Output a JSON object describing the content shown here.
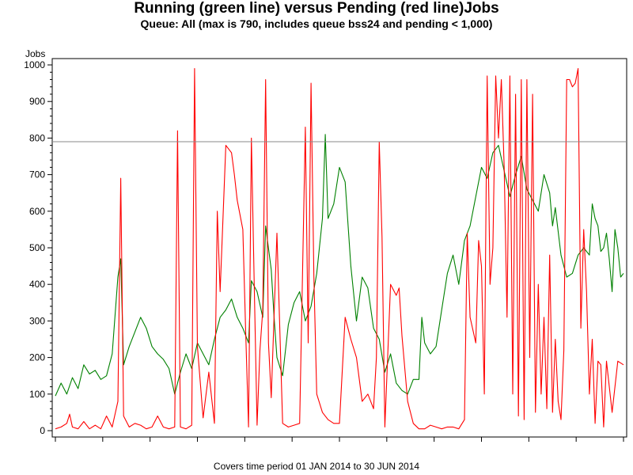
{
  "chart_data": {
    "type": "line",
    "title": "Running (green line) versus Pending (red line)Jobs",
    "subtitle": "Queue: All (max is 790, includes queue bss24 and pending < 1,000)",
    "ylabel": "Jobs",
    "xlabel": "",
    "ylim": [
      0,
      1000
    ],
    "yticks": [
      "0",
      "100",
      "200",
      "300",
      "400",
      "500",
      "600",
      "700",
      "800",
      "900",
      "1000"
    ],
    "x_period": [
      "2014-01-01",
      "2014-06-30"
    ],
    "x_tick_count": 13,
    "reference_line": {
      "y": 790,
      "color": "#888888"
    },
    "grid": false,
    "footnote": "Covers time period 01 JAN 2014 to 30 JUN 2014",
    "series": [
      {
        "name": "Running",
        "color": "#008000",
        "points": [
          [
            0.0,
            95
          ],
          [
            0.01,
            130
          ],
          [
            0.02,
            100
          ],
          [
            0.03,
            145
          ],
          [
            0.04,
            115
          ],
          [
            0.05,
            180
          ],
          [
            0.06,
            155
          ],
          [
            0.07,
            165
          ],
          [
            0.08,
            140
          ],
          [
            0.09,
            150
          ],
          [
            0.1,
            210
          ],
          [
            0.11,
            420
          ],
          [
            0.115,
            470
          ],
          [
            0.12,
            180
          ],
          [
            0.13,
            230
          ],
          [
            0.14,
            270
          ],
          [
            0.15,
            310
          ],
          [
            0.16,
            280
          ],
          [
            0.17,
            230
          ],
          [
            0.18,
            210
          ],
          [
            0.19,
            195
          ],
          [
            0.2,
            170
          ],
          [
            0.21,
            100
          ],
          [
            0.22,
            160
          ],
          [
            0.23,
            210
          ],
          [
            0.24,
            170
          ],
          [
            0.25,
            240
          ],
          [
            0.26,
            210
          ],
          [
            0.27,
            180
          ],
          [
            0.28,
            250
          ],
          [
            0.29,
            310
          ],
          [
            0.3,
            330
          ],
          [
            0.31,
            360
          ],
          [
            0.32,
            310
          ],
          [
            0.33,
            280
          ],
          [
            0.34,
            240
          ],
          [
            0.345,
            410
          ],
          [
            0.355,
            380
          ],
          [
            0.365,
            310
          ],
          [
            0.37,
            560
          ],
          [
            0.38,
            440
          ],
          [
            0.385,
            310
          ],
          [
            0.39,
            200
          ],
          [
            0.4,
            150
          ],
          [
            0.41,
            290
          ],
          [
            0.42,
            350
          ],
          [
            0.43,
            380
          ],
          [
            0.44,
            300
          ],
          [
            0.45,
            340
          ],
          [
            0.46,
            430
          ],
          [
            0.47,
            580
          ],
          [
            0.475,
            810
          ],
          [
            0.48,
            580
          ],
          [
            0.49,
            620
          ],
          [
            0.5,
            720
          ],
          [
            0.51,
            680
          ],
          [
            0.52,
            450
          ],
          [
            0.53,
            300
          ],
          [
            0.54,
            420
          ],
          [
            0.55,
            390
          ],
          [
            0.56,
            280
          ],
          [
            0.57,
            250
          ],
          [
            0.58,
            160
          ],
          [
            0.59,
            210
          ],
          [
            0.6,
            130
          ],
          [
            0.61,
            110
          ],
          [
            0.62,
            100
          ],
          [
            0.63,
            140
          ],
          [
            0.64,
            140
          ],
          [
            0.645,
            310
          ],
          [
            0.65,
            240
          ],
          [
            0.66,
            210
          ],
          [
            0.67,
            230
          ],
          [
            0.68,
            330
          ],
          [
            0.69,
            430
          ],
          [
            0.7,
            480
          ],
          [
            0.71,
            400
          ],
          [
            0.72,
            520
          ],
          [
            0.73,
            560
          ],
          [
            0.74,
            640
          ],
          [
            0.75,
            720
          ],
          [
            0.76,
            690
          ],
          [
            0.77,
            760
          ],
          [
            0.78,
            780
          ],
          [
            0.79,
            710
          ],
          [
            0.8,
            640
          ],
          [
            0.81,
            700
          ],
          [
            0.82,
            750
          ],
          [
            0.83,
            660
          ],
          [
            0.84,
            630
          ],
          [
            0.85,
            600
          ],
          [
            0.86,
            700
          ],
          [
            0.87,
            650
          ],
          [
            0.875,
            560
          ],
          [
            0.88,
            610
          ],
          [
            0.89,
            480
          ],
          [
            0.9,
            420
          ],
          [
            0.91,
            430
          ],
          [
            0.92,
            480
          ],
          [
            0.93,
            500
          ],
          [
            0.94,
            480
          ],
          [
            0.945,
            620
          ],
          [
            0.95,
            580
          ],
          [
            0.955,
            560
          ],
          [
            0.96,
            490
          ],
          [
            0.965,
            500
          ],
          [
            0.97,
            540
          ],
          [
            0.975,
            470
          ],
          [
            0.98,
            380
          ],
          [
            0.985,
            550
          ],
          [
            0.99,
            500
          ],
          [
            0.995,
            420
          ],
          [
            1.0,
            430
          ]
        ]
      },
      {
        "name": "Pending",
        "color": "#ff0000",
        "points": [
          [
            0.0,
            5
          ],
          [
            0.01,
            10
          ],
          [
            0.02,
            20
          ],
          [
            0.025,
            45
          ],
          [
            0.03,
            10
          ],
          [
            0.04,
            5
          ],
          [
            0.05,
            25
          ],
          [
            0.06,
            5
          ],
          [
            0.07,
            15
          ],
          [
            0.08,
            5
          ],
          [
            0.09,
            40
          ],
          [
            0.1,
            10
          ],
          [
            0.11,
            80
          ],
          [
            0.115,
            690
          ],
          [
            0.12,
            40
          ],
          [
            0.13,
            10
          ],
          [
            0.14,
            20
          ],
          [
            0.15,
            15
          ],
          [
            0.16,
            5
          ],
          [
            0.17,
            10
          ],
          [
            0.18,
            40
          ],
          [
            0.19,
            10
          ],
          [
            0.2,
            5
          ],
          [
            0.21,
            10
          ],
          [
            0.215,
            820
          ],
          [
            0.22,
            10
          ],
          [
            0.23,
            5
          ],
          [
            0.24,
            15
          ],
          [
            0.245,
            990
          ],
          [
            0.25,
            230
          ],
          [
            0.26,
            35
          ],
          [
            0.27,
            160
          ],
          [
            0.28,
            20
          ],
          [
            0.285,
            600
          ],
          [
            0.29,
            380
          ],
          [
            0.3,
            780
          ],
          [
            0.31,
            760
          ],
          [
            0.315,
            700
          ],
          [
            0.32,
            630
          ],
          [
            0.33,
            550
          ],
          [
            0.335,
            270
          ],
          [
            0.34,
            10
          ],
          [
            0.345,
            800
          ],
          [
            0.35,
            400
          ],
          [
            0.355,
            15
          ],
          [
            0.36,
            220
          ],
          [
            0.365,
            330
          ],
          [
            0.37,
            960
          ],
          [
            0.375,
            240
          ],
          [
            0.38,
            90
          ],
          [
            0.39,
            540
          ],
          [
            0.4,
            20
          ],
          [
            0.41,
            10
          ],
          [
            0.42,
            15
          ],
          [
            0.43,
            20
          ],
          [
            0.44,
            830
          ],
          [
            0.445,
            240
          ],
          [
            0.45,
            950
          ],
          [
            0.455,
            420
          ],
          [
            0.46,
            100
          ],
          [
            0.47,
            50
          ],
          [
            0.48,
            30
          ],
          [
            0.49,
            20
          ],
          [
            0.5,
            20
          ],
          [
            0.51,
            310
          ],
          [
            0.52,
            250
          ],
          [
            0.53,
            200
          ],
          [
            0.54,
            80
          ],
          [
            0.55,
            100
          ],
          [
            0.56,
            60
          ],
          [
            0.565,
            200
          ],
          [
            0.57,
            790
          ],
          [
            0.575,
            530
          ],
          [
            0.58,
            10
          ],
          [
            0.59,
            400
          ],
          [
            0.6,
            370
          ],
          [
            0.605,
            390
          ],
          [
            0.61,
            260
          ],
          [
            0.62,
            80
          ],
          [
            0.63,
            20
          ],
          [
            0.64,
            5
          ],
          [
            0.65,
            5
          ],
          [
            0.66,
            15
          ],
          [
            0.67,
            10
          ],
          [
            0.68,
            5
          ],
          [
            0.69,
            10
          ],
          [
            0.7,
            10
          ],
          [
            0.71,
            5
          ],
          [
            0.72,
            30
          ],
          [
            0.725,
            540
          ],
          [
            0.73,
            310
          ],
          [
            0.74,
            240
          ],
          [
            0.745,
            520
          ],
          [
            0.75,
            450
          ],
          [
            0.755,
            100
          ],
          [
            0.76,
            970
          ],
          [
            0.765,
            400
          ],
          [
            0.77,
            500
          ],
          [
            0.775,
            970
          ],
          [
            0.78,
            800
          ],
          [
            0.785,
            960
          ],
          [
            0.79,
            720
          ],
          [
            0.795,
            310
          ],
          [
            0.8,
            970
          ],
          [
            0.805,
            100
          ],
          [
            0.81,
            920
          ],
          [
            0.815,
            40
          ],
          [
            0.82,
            960
          ],
          [
            0.825,
            30
          ],
          [
            0.83,
            960
          ],
          [
            0.835,
            200
          ],
          [
            0.84,
            920
          ],
          [
            0.845,
            50
          ],
          [
            0.85,
            400
          ],
          [
            0.855,
            100
          ],
          [
            0.86,
            310
          ],
          [
            0.865,
            60
          ],
          [
            0.87,
            480
          ],
          [
            0.875,
            50
          ],
          [
            0.88,
            250
          ],
          [
            0.885,
            80
          ],
          [
            0.89,
            30
          ],
          [
            0.895,
            220
          ],
          [
            0.9,
            960
          ],
          [
            0.905,
            960
          ],
          [
            0.91,
            940
          ],
          [
            0.915,
            950
          ],
          [
            0.92,
            990
          ],
          [
            0.925,
            280
          ],
          [
            0.93,
            550
          ],
          [
            0.935,
            380
          ],
          [
            0.94,
            100
          ],
          [
            0.945,
            250
          ],
          [
            0.95,
            20
          ],
          [
            0.955,
            190
          ],
          [
            0.96,
            180
          ],
          [
            0.965,
            10
          ],
          [
            0.97,
            190
          ],
          [
            0.98,
            50
          ],
          [
            0.99,
            190
          ],
          [
            1.0,
            180
          ]
        ]
      }
    ]
  }
}
